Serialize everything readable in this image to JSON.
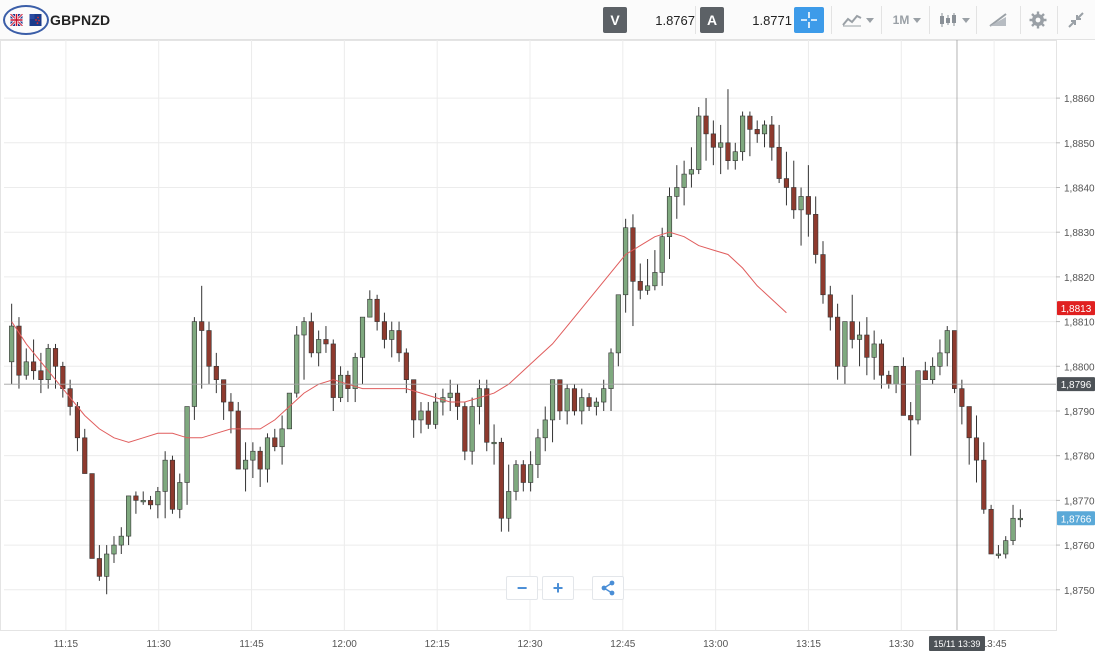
{
  "toolbar": {
    "instrument": "GBPNZD",
    "bid_letter": "V",
    "bid_value": "1.8767",
    "ask_letter": "A",
    "ask_value": "1.8771",
    "timeframe": "1M",
    "icons": [
      "uk-flag-icon",
      "nz-flag-icon",
      "crosshair-icon",
      "line-chart-type-icon",
      "candlestick-icon",
      "drawing-tools-icon",
      "gear-icon",
      "collapse-icon"
    ]
  },
  "zoom": {
    "minus": "−",
    "plus": "+"
  },
  "colors": {
    "up": "#7fa97f",
    "down": "#8e3a2e",
    "ma": "#e05d5d",
    "grid": "#ececec",
    "accent": "#3d9be9"
  },
  "chart_data": {
    "type": "candlestick",
    "y_ticks": [
      "1,8750",
      "1,8760",
      "1,8770",
      "1,8780",
      "1,8790",
      "1,8800",
      "1,8810",
      "1,8820",
      "1,8830",
      "1,8840",
      "1,8850",
      "1,8860"
    ],
    "y_tick_values": [
      1.875,
      1.876,
      1.877,
      1.878,
      1.879,
      1.88,
      1.881,
      1.882,
      1.883,
      1.884,
      1.885,
      1.886
    ],
    "x_ticks": [
      "11:15",
      "11:30",
      "11:45",
      "12:00",
      "12:15",
      "12:30",
      "12:45",
      "13:00",
      "13:15",
      "13:30",
      "13:45"
    ],
    "ylim": [
      1.8741,
      1.8873
    ],
    "x_range": [
      "11:05",
      "13:55"
    ],
    "crosshair": {
      "price_label": "1,8796",
      "price": 1.8796,
      "time_label": "15/11 13:39",
      "time": "13:39"
    },
    "ma_label": "1,8813",
    "ma_value": 1.8813,
    "last_label": "1,8766",
    "last_value": 1.8766,
    "moving_average": [
      [
        0,
        1.881
      ],
      [
        2,
        1.8805
      ],
      [
        4,
        1.8801
      ],
      [
        6,
        1.8797
      ],
      [
        8,
        1.8793
      ],
      [
        10,
        1.8789
      ],
      [
        12,
        1.8786
      ],
      [
        14,
        1.8784
      ],
      [
        16,
        1.8783
      ],
      [
        18,
        1.8784
      ],
      [
        20,
        1.8785
      ],
      [
        22,
        1.8785
      ],
      [
        24,
        1.8784
      ],
      [
        26,
        1.8784
      ],
      [
        28,
        1.8785
      ],
      [
        30,
        1.8786
      ],
      [
        32,
        1.8786
      ],
      [
        34,
        1.8786
      ],
      [
        36,
        1.8788
      ],
      [
        38,
        1.8791
      ],
      [
        40,
        1.8794
      ],
      [
        42,
        1.8796
      ],
      [
        44,
        1.8797
      ],
      [
        46,
        1.8796
      ],
      [
        48,
        1.8795
      ],
      [
        50,
        1.8795
      ],
      [
        52,
        1.8795
      ],
      [
        54,
        1.8795
      ],
      [
        56,
        1.8794
      ],
      [
        58,
        1.8793
      ],
      [
        60,
        1.8792
      ],
      [
        62,
        1.8792
      ],
      [
        64,
        1.8793
      ],
      [
        66,
        1.8794
      ],
      [
        68,
        1.8796
      ],
      [
        70,
        1.8799
      ],
      [
        72,
        1.8802
      ],
      [
        74,
        1.8805
      ],
      [
        76,
        1.8809
      ],
      [
        78,
        1.8813
      ],
      [
        80,
        1.8817
      ],
      [
        82,
        1.8821
      ],
      [
        84,
        1.8825
      ],
      [
        86,
        1.8827
      ],
      [
        88,
        1.8829
      ],
      [
        90,
        1.883
      ],
      [
        92,
        1.8829
      ],
      [
        94,
        1.8827
      ],
      [
        96,
        1.8826
      ],
      [
        98,
        1.8825
      ],
      [
        100,
        1.8822
      ],
      [
        102,
        1.8818
      ],
      [
        104,
        1.8815
      ],
      [
        106,
        1.8812
      ]
    ],
    "candles": [
      [
        1.8801,
        1.8814,
        1.8796,
        1.8809
      ],
      [
        1.8809,
        1.8811,
        1.8795,
        1.8798
      ],
      [
        1.8798,
        1.8804,
        1.8797,
        1.8801
      ],
      [
        1.8801,
        1.8806,
        1.8797,
        1.8799
      ],
      [
        1.8799,
        1.8803,
        1.8794,
        1.8797
      ],
      [
        1.8797,
        1.8805,
        1.8795,
        1.8804
      ],
      [
        1.8804,
        1.8805,
        1.8795,
        1.88
      ],
      [
        1.88,
        1.8801,
        1.8793,
        1.8795
      ],
      [
        1.8795,
        1.8797,
        1.8789,
        1.8791
      ],
      [
        1.8791,
        1.8792,
        1.8781,
        1.8784
      ],
      [
        1.8784,
        1.8786,
        1.8776,
        1.8776
      ],
      [
        1.8776,
        1.8776,
        1.8757,
        1.8757
      ],
      [
        1.8757,
        1.876,
        1.8752,
        1.8753
      ],
      [
        1.8753,
        1.876,
        1.8749,
        1.8758
      ],
      [
        1.8758,
        1.8762,
        1.8756,
        1.876
      ],
      [
        1.876,
        1.8764,
        1.8758,
        1.8762
      ],
      [
        1.8762,
        1.8771,
        1.876,
        1.8771
      ],
      [
        1.8771,
        1.8772,
        1.8767,
        1.877
      ],
      [
        1.877,
        1.8772,
        1.8769,
        1.877
      ],
      [
        1.877,
        1.8771,
        1.8768,
        1.8769
      ],
      [
        1.8769,
        1.8773,
        1.8766,
        1.8772
      ],
      [
        1.8772,
        1.8781,
        1.8766,
        1.8779
      ],
      [
        1.8779,
        1.878,
        1.8767,
        1.8768
      ],
      [
        1.8768,
        1.8776,
        1.8766,
        1.8774
      ],
      [
        1.8774,
        1.8791,
        1.8769,
        1.8791
      ],
      [
        1.8791,
        1.8811,
        1.8788,
        1.881
      ],
      [
        1.881,
        1.8818,
        1.8795,
        1.8808
      ],
      [
        1.8808,
        1.881,
        1.8796,
        1.88
      ],
      [
        1.88,
        1.8803,
        1.8794,
        1.8797
      ],
      [
        1.8797,
        1.8797,
        1.8788,
        1.8792
      ],
      [
        1.8792,
        1.8794,
        1.8785,
        1.879
      ],
      [
        1.879,
        1.8792,
        1.8777,
        1.8777
      ],
      [
        1.8777,
        1.8783,
        1.8772,
        1.8779
      ],
      [
        1.8779,
        1.8783,
        1.8775,
        1.8781
      ],
      [
        1.8781,
        1.8782,
        1.8773,
        1.8777
      ],
      [
        1.8777,
        1.8785,
        1.8774,
        1.8784
      ],
      [
        1.8784,
        1.8786,
        1.8781,
        1.8782
      ],
      [
        1.8782,
        1.8789,
        1.8778,
        1.8786
      ],
      [
        1.8786,
        1.8794,
        1.8786,
        1.8794
      ],
      [
        1.8794,
        1.8809,
        1.8793,
        1.8807
      ],
      [
        1.8807,
        1.8811,
        1.8797,
        1.881
      ],
      [
        1.881,
        1.8812,
        1.8802,
        1.8803
      ],
      [
        1.8803,
        1.8808,
        1.88,
        1.8806
      ],
      [
        1.8806,
        1.8809,
        1.8803,
        1.8805
      ],
      [
        1.8805,
        1.8806,
        1.879,
        1.8793
      ],
      [
        1.8793,
        1.88,
        1.8792,
        1.8798
      ],
      [
        1.8798,
        1.8799,
        1.8792,
        1.8795
      ],
      [
        1.8795,
        1.8803,
        1.8792,
        1.8802
      ],
      [
        1.8802,
        1.8811,
        1.8796,
        1.8811
      ],
      [
        1.8811,
        1.8817,
        1.8811,
        1.8815
      ],
      [
        1.8815,
        1.8816,
        1.8808,
        1.881
      ],
      [
        1.881,
        1.8812,
        1.8804,
        1.8806
      ],
      [
        1.8806,
        1.881,
        1.8802,
        1.8808
      ],
      [
        1.8808,
        1.881,
        1.8801,
        1.8803
      ],
      [
        1.8803,
        1.8804,
        1.8794,
        1.8797
      ],
      [
        1.8797,
        1.8797,
        1.8784,
        1.8788
      ],
      [
        1.8788,
        1.8792,
        1.8785,
        1.879
      ],
      [
        1.879,
        1.8792,
        1.8786,
        1.8787
      ],
      [
        1.8787,
        1.8794,
        1.8786,
        1.8792
      ],
      [
        1.8792,
        1.8795,
        1.8789,
        1.8793
      ],
      [
        1.8793,
        1.8797,
        1.879,
        1.8794
      ],
      [
        1.8794,
        1.8796,
        1.8788,
        1.8791
      ],
      [
        1.8791,
        1.8792,
        1.8779,
        1.8781
      ],
      [
        1.8781,
        1.8793,
        1.8778,
        1.8791
      ],
      [
        1.8791,
        1.8797,
        1.8787,
        1.8795
      ],
      [
        1.8795,
        1.8797,
        1.8781,
        1.8783
      ],
      [
        1.8783,
        1.8787,
        1.8778,
        1.8783
      ],
      [
        1.8783,
        1.8784,
        1.8763,
        1.8766
      ],
      [
        1.8766,
        1.8778,
        1.8763,
        1.8772
      ],
      [
        1.8772,
        1.8779,
        1.877,
        1.8778
      ],
      [
        1.8778,
        1.8779,
        1.8772,
        1.8774
      ],
      [
        1.8774,
        1.8781,
        1.8772,
        1.8778
      ],
      [
        1.8778,
        1.8786,
        1.8775,
        1.8784
      ],
      [
        1.8784,
        1.8791,
        1.8781,
        1.8788
      ],
      [
        1.8788,
        1.8797,
        1.8783,
        1.8797
      ],
      [
        1.8797,
        1.8797,
        1.8788,
        1.879
      ],
      [
        1.879,
        1.8796,
        1.8787,
        1.8795
      ],
      [
        1.8795,
        1.8796,
        1.8789,
        1.879
      ],
      [
        1.879,
        1.8795,
        1.8787,
        1.8793
      ],
      [
        1.8793,
        1.8794,
        1.879,
        1.8791
      ],
      [
        1.8791,
        1.8793,
        1.8789,
        1.8792
      ],
      [
        1.8792,
        1.8797,
        1.879,
        1.8795
      ],
      [
        1.8795,
        1.8804,
        1.879,
        1.8803
      ],
      [
        1.8803,
        1.8816,
        1.88,
        1.8816
      ],
      [
        1.8816,
        1.8833,
        1.8812,
        1.8831
      ],
      [
        1.8831,
        1.8834,
        1.8809,
        1.8819
      ],
      [
        1.8819,
        1.8823,
        1.8815,
        1.8817
      ],
      [
        1.8817,
        1.8824,
        1.8816,
        1.8818
      ],
      [
        1.8818,
        1.8826,
        1.8817,
        1.8821
      ],
      [
        1.8821,
        1.8831,
        1.8818,
        1.8829
      ],
      [
        1.8829,
        1.884,
        1.8824,
        1.8838
      ],
      [
        1.8838,
        1.8845,
        1.8833,
        1.884
      ],
      [
        1.884,
        1.8846,
        1.8836,
        1.8843
      ],
      [
        1.8843,
        1.8849,
        1.884,
        1.8844
      ],
      [
        1.8844,
        1.8858,
        1.8843,
        1.8856
      ],
      [
        1.8856,
        1.886,
        1.8846,
        1.8852
      ]
    ],
    "candle_interval_minutes": 1,
    "candle_start": "11:05",
    "tail_candles": [
      [
        1.8852,
        1.8855,
        1.8845,
        1.8849
      ],
      [
        1.8849,
        1.8854,
        1.8843,
        1.885
      ],
      [
        1.885,
        1.8862,
        1.8844,
        1.8846
      ],
      [
        1.8846,
        1.885,
        1.8844,
        1.8848
      ],
      [
        1.8848,
        1.8857,
        1.8846,
        1.8856
      ],
      [
        1.8856,
        1.8857,
        1.8847,
        1.8853
      ],
      [
        1.8853,
        1.8855,
        1.885,
        1.8852
      ],
      [
        1.8852,
        1.8855,
        1.8849,
        1.8854
      ],
      [
        1.8854,
        1.8856,
        1.8846,
        1.8849
      ],
      [
        1.8849,
        1.8854,
        1.8841,
        1.8842
      ],
      [
        1.8842,
        1.8848,
        1.8836,
        1.884
      ],
      [
        1.884,
        1.8846,
        1.8833,
        1.8835
      ],
      [
        1.8835,
        1.884,
        1.8827,
        1.8838
      ],
      [
        1.8838,
        1.8845,
        1.8829,
        1.8834
      ],
      [
        1.8834,
        1.8838,
        1.8823,
        1.8825
      ],
      [
        1.8825,
        1.8828,
        1.8814,
        1.8816
      ],
      [
        1.8816,
        1.8818,
        1.8808,
        1.8811
      ],
      [
        1.8811,
        1.8814,
        1.8797,
        1.88
      ],
      [
        1.88,
        1.8803,
        1.8796,
        1.881
      ],
      [
        1.881,
        1.8816,
        1.8804,
        1.8806
      ],
      [
        1.8806,
        1.881,
        1.88,
        1.8807
      ],
      [
        1.8807,
        1.8811,
        1.8798,
        1.8802
      ],
      [
        1.8802,
        1.8808,
        1.8797,
        1.8805
      ],
      [
        1.8805,
        1.8806,
        1.8795,
        1.8798
      ],
      [
        1.8798,
        1.8799,
        1.8795,
        1.8796
      ],
      [
        1.8796,
        1.88,
        1.8794,
        1.88
      ],
      [
        1.88,
        1.8802,
        1.8789,
        1.8789
      ],
      [
        1.8789,
        1.8792,
        1.878,
        1.8788
      ],
      [
        1.8788,
        1.8799,
        1.8787,
        1.8799
      ],
      [
        1.8799,
        1.8801,
        1.8797,
        1.8797
      ],
      [
        1.8797,
        1.8802,
        1.8796,
        1.88
      ],
      [
        1.88,
        1.8806,
        1.8798,
        1.8803
      ],
      [
        1.8803,
        1.8809,
        1.88,
        1.8808
      ],
      [
        1.8808,
        1.8808,
        1.8794,
        1.8795
      ],
      [
        1.8795,
        1.8797,
        1.8787,
        1.8791
      ],
      [
        1.8791,
        1.8791,
        1.8778,
        1.8784
      ],
      [
        1.8784,
        1.8789,
        1.8774,
        1.8779
      ],
      [
        1.8779,
        1.8783,
        1.8767,
        1.8768
      ],
      [
        1.8768,
        1.8769,
        1.8758,
        1.8758
      ],
      [
        1.8758,
        1.876,
        1.8757,
        1.8758
      ],
      [
        1.8758,
        1.8762,
        1.8757,
        1.8761
      ],
      [
        1.8761,
        1.8769,
        1.876,
        1.8766
      ],
      [
        1.8766,
        1.8768,
        1.8764,
        1.8766
      ]
    ]
  }
}
